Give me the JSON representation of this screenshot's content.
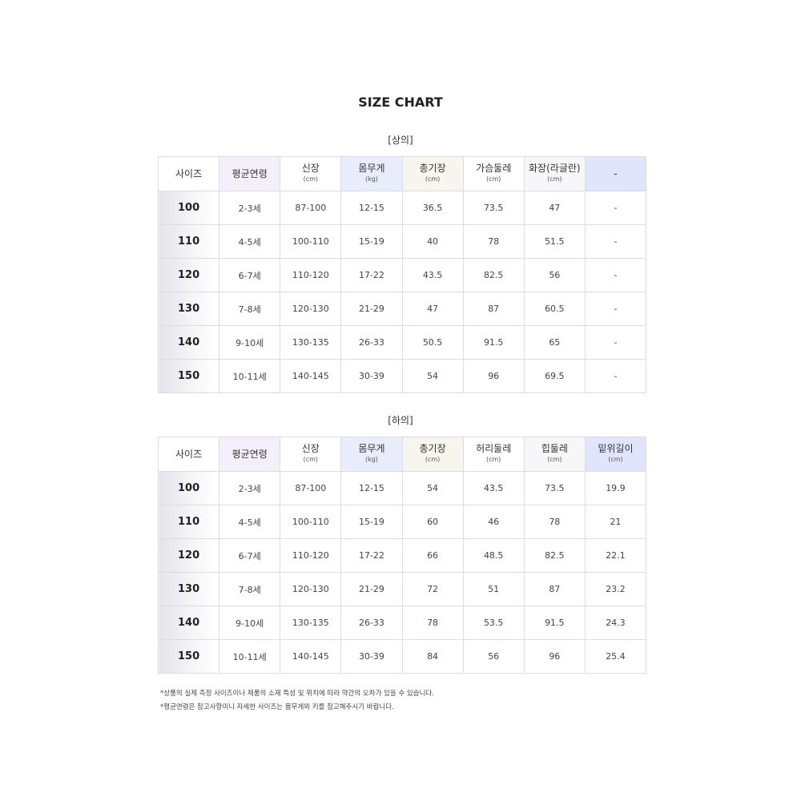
{
  "title": "SIZE CHART",
  "tables": [
    {
      "label": "[상의]",
      "headers": [
        {
          "t": "사이즈",
          "u": ""
        },
        {
          "t": "평균연령",
          "u": ""
        },
        {
          "t": "신장",
          "u": "(cm)"
        },
        {
          "t": "몸무게",
          "u": "(kg)"
        },
        {
          "t": "총기장",
          "u": "(cm)"
        },
        {
          "t": "가슴둘레",
          "u": "(cm)"
        },
        {
          "t": "화장(라글란)",
          "u": "(cm)"
        },
        {
          "t": "-",
          "u": ""
        }
      ],
      "rows": [
        [
          "100",
          "2-3세",
          "87-100",
          "12-15",
          "36.5",
          "73.5",
          "47",
          "-"
        ],
        [
          "110",
          "4-5세",
          "100-110",
          "15-19",
          "40",
          "78",
          "51.5",
          "-"
        ],
        [
          "120",
          "6-7세",
          "110-120",
          "17-22",
          "43.5",
          "82.5",
          "56",
          "-"
        ],
        [
          "130",
          "7-8세",
          "120-130",
          "21-29",
          "47",
          "87",
          "60.5",
          "-"
        ],
        [
          "140",
          "9-10세",
          "130-135",
          "26-33",
          "50.5",
          "91.5",
          "65",
          "-"
        ],
        [
          "150",
          "10-11세",
          "140-145",
          "30-39",
          "54",
          "96",
          "69.5",
          "-"
        ]
      ]
    },
    {
      "label": "[하의]",
      "headers": [
        {
          "t": "사이즈",
          "u": ""
        },
        {
          "t": "평균연령",
          "u": ""
        },
        {
          "t": "신장",
          "u": "(cm)"
        },
        {
          "t": "몸무게",
          "u": "(kg)"
        },
        {
          "t": "총기장",
          "u": "(cm)"
        },
        {
          "t": "허리둘레",
          "u": "(cm)"
        },
        {
          "t": "힙둘레",
          "u": "(cm)"
        },
        {
          "t": "밑위길이",
          "u": "(cm)"
        }
      ],
      "rows": [
        [
          "100",
          "2-3세",
          "87-100",
          "12-15",
          "54",
          "43.5",
          "73.5",
          "19.9"
        ],
        [
          "110",
          "4-5세",
          "100-110",
          "15-19",
          "60",
          "46",
          "78",
          "21"
        ],
        [
          "120",
          "6-7세",
          "110-120",
          "17-22",
          "66",
          "48.5",
          "82.5",
          "22.1"
        ],
        [
          "130",
          "7-8세",
          "120-130",
          "21-29",
          "72",
          "51",
          "87",
          "23.2"
        ],
        [
          "140",
          "9-10세",
          "130-135",
          "26-33",
          "78",
          "53.5",
          "91.5",
          "24.3"
        ],
        [
          "150",
          "10-11세",
          "140-145",
          "30-39",
          "84",
          "56",
          "96",
          "25.4"
        ]
      ]
    }
  ],
  "header_colors": [
    "#ffffff",
    "#f4f0fb",
    "#ffffff",
    "#e8ecfb",
    "#f8f5ee",
    "#ffffff",
    "#f7f7fa",
    "#e0e5fb"
  ],
  "notes": [
    "*상품의 실제 측정 사이즈이나 제품의 소재 특성 및 위치에 따라 약간의 오차가 있을 수 있습니다.",
    "*평균연령은 참고사항이니 자세한 사이즈는 몸무게와 키를 참고해주시기 바랍니다."
  ]
}
